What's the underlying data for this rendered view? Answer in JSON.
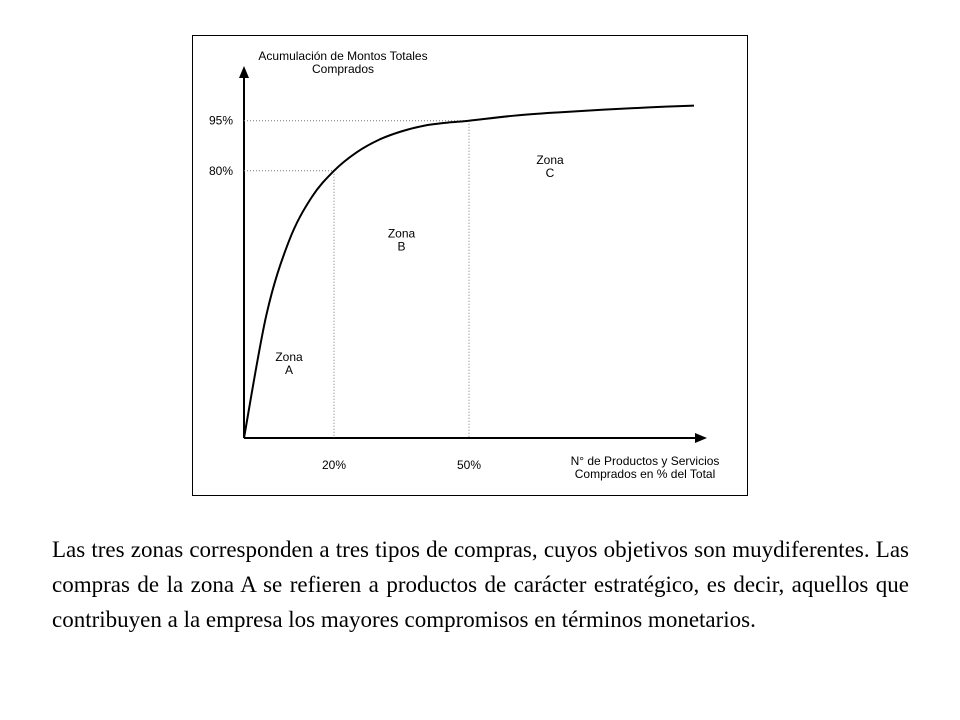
{
  "chart_data": {
    "type": "line",
    "ylabel": [
      "Acumulación de Montos Totales",
      "Comprados"
    ],
    "xlabel": [
      "N° de Productos y Servicios",
      "Comprados en % del Total"
    ],
    "xlim": [
      0,
      100
    ],
    "ylim": [
      0,
      100
    ],
    "x_ticks": [
      {
        "value": 20,
        "label": "20%"
      },
      {
        "value": 50,
        "label": "50%"
      }
    ],
    "y_ticks": [
      {
        "value": 80,
        "label": "80%"
      },
      {
        "value": 95,
        "label": "95%"
      }
    ],
    "series": [
      {
        "x": [
          0,
          5,
          10,
          15,
          20,
          25,
          30,
          35,
          40,
          45,
          50,
          60,
          70,
          80,
          90,
          100
        ],
        "y": [
          0,
          37,
          59,
          72,
          80,
          85.5,
          89.3,
          91.8,
          93.5,
          94.4,
          95,
          96.5,
          97.5,
          98.3,
          99,
          99.5
        ]
      }
    ],
    "reference_lines": [
      {
        "x": 20,
        "y": 80,
        "style": "dotted"
      },
      {
        "x": 50,
        "y": 95,
        "style": "dotted"
      }
    ],
    "annotations": [
      {
        "line1": "Zona",
        "line2": "A",
        "x": 10,
        "y": 23
      },
      {
        "line1": "Zona",
        "line2": "B",
        "x": 35,
        "y": 60
      },
      {
        "line1": "Zona",
        "line2": "C",
        "x": 68,
        "y": 82
      }
    ],
    "grid": false,
    "legend": "none"
  },
  "caption": "Las tres zonas corresponden a tres tipos de compras, cuyos objetivos son muydiferentes. Las compras de la zona A se refieren a productos de carácter estratégico, es decir, aquellos que contribuyen a la empresa los mayores compromisos en términos monetarios."
}
